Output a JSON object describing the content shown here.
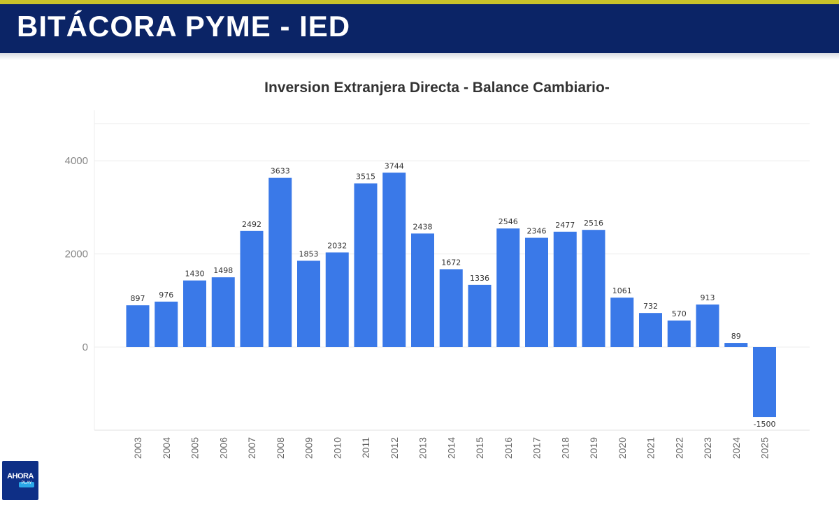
{
  "header": {
    "title": "BITÁCORA PYME - IED"
  },
  "logo": {
    "text": "AHORA",
    "badge": "PLAY"
  },
  "chart_data": {
    "type": "bar",
    "title": "Inversion Extranjera Directa - Balance Cambiario-",
    "xlabel": "",
    "ylabel": "",
    "ylim": [
      -1800,
      5000
    ],
    "yticks": [
      0,
      2000,
      4000
    ],
    "grid": true,
    "color": "#3a79e8",
    "categories": [
      "2003",
      "2004",
      "2005",
      "2006",
      "2007",
      "2008",
      "2009",
      "2010",
      "2011",
      "2012",
      "2013",
      "2014",
      "2015",
      "2016",
      "2017",
      "2018",
      "2019",
      "2020",
      "2021",
      "2022",
      "2023",
      "2024",
      "2025"
    ],
    "values": [
      897,
      976,
      1430,
      1498,
      2492,
      3633,
      1853,
      2032,
      3515,
      3744,
      2438,
      1672,
      1336,
      2546,
      2346,
      2477,
      2516,
      1061,
      732,
      570,
      913,
      89,
      -1500
    ]
  }
}
